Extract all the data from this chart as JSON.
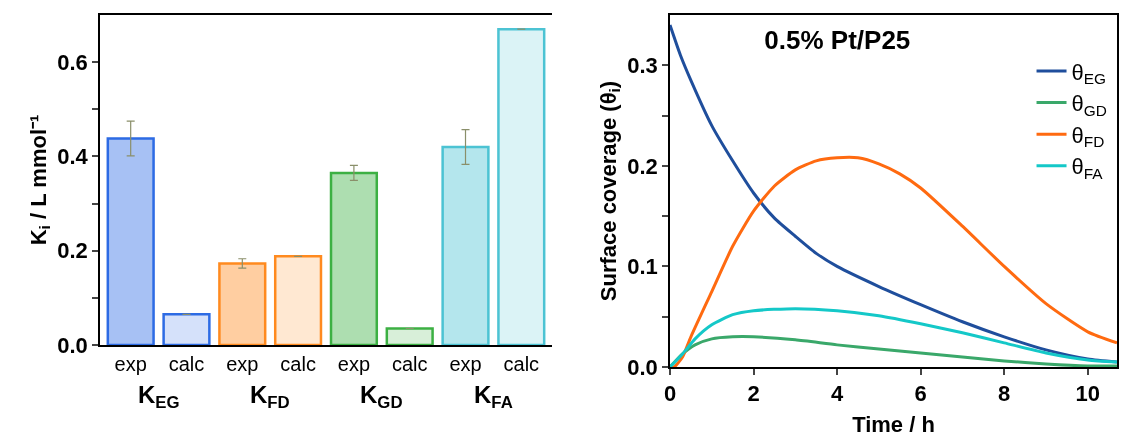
{
  "chart_data": [
    {
      "type": "bar",
      "ylabel": "K$_{i}$ / L mmol⁻¹",
      "categories": [
        "exp",
        "calc",
        "exp",
        "calc",
        "exp",
        "calc",
        "exp",
        "calc"
      ],
      "values": [
        0.438,
        0.065,
        0.173,
        0.188,
        0.365,
        0.035,
        0.42,
        0.67
      ],
      "errors": [
        0.037,
        null,
        0.01,
        null,
        0.016,
        null,
        0.037,
        null
      ],
      "colors": [
        "#2d6be4",
        "#2d6be4",
        "#ff8a1f",
        "#ff8a1f",
        "#3cb043",
        "#3cb043",
        "#4cc3d3",
        "#4cc3d3"
      ],
      "annotations": [
        "K$_{EG}$",
        "K$_{FD}$",
        "K$_{GD}$",
        "K$_{FA}$"
      ],
      "ylim": [
        0,
        0.7
      ],
      "yticks": [
        {
          "value": 0,
          "label": "0.0"
        },
        {
          "value": 0.1,
          "label": null
        },
        0.2,
        {
          "value": 0.3,
          "label": null
        },
        0.4,
        {
          "value": 0.5,
          "label": null
        },
        0.6
      ],
      "grid": false,
      "legend": false
    },
    {
      "type": "line",
      "title": "0.5% Pt/P25",
      "xlabel": "Time / h",
      "ylabel": "Surface coverage (θ$_{i}$)",
      "series": [
        {
          "name": "θ$_{EG}$",
          "color": "#1f4e9c",
          "x": [
            0,
            0.25,
            0.5,
            1,
            1.5,
            2,
            2.5,
            3,
            3.5,
            4,
            5,
            6,
            7,
            8,
            9,
            10,
            10.7
          ],
          "values": [
            0.34,
            0.31,
            0.285,
            0.24,
            0.205,
            0.173,
            0.148,
            0.13,
            0.113,
            0.1,
            0.08,
            0.062,
            0.045,
            0.03,
            0.017,
            0.008,
            0.005
          ]
        },
        {
          "name": "θ$_{GD}$",
          "color": "#3aa86a",
          "x": [
            0,
            0.3,
            0.6,
            1,
            1.5,
            2,
            3,
            4,
            5,
            6,
            7,
            8,
            9,
            10,
            10.7
          ],
          "values": [
            0,
            0.013,
            0.022,
            0.028,
            0.03,
            0.03,
            0.027,
            0.022,
            0.018,
            0.014,
            0.01,
            0.006,
            0.003,
            0.001,
            0.001
          ]
        },
        {
          "name": "θ$_{FD}$",
          "color": "#ff6a10",
          "x": [
            0,
            0.1,
            0.3,
            0.5,
            1,
            1.5,
            2,
            2.5,
            3,
            3.5,
            4,
            4.5,
            5,
            5.5,
            6,
            7,
            8,
            9,
            10,
            10.7
          ],
          "values": [
            0,
            0,
            0.01,
            0.03,
            0.075,
            0.12,
            0.155,
            0.18,
            0.196,
            0.205,
            0.208,
            0.208,
            0.202,
            0.192,
            0.178,
            0.14,
            0.1,
            0.063,
            0.035,
            0.024
          ]
        },
        {
          "name": "θ$_{FA}$",
          "color": "#14c8c8",
          "x": [
            0,
            0.3,
            0.6,
            1,
            1.5,
            2,
            3,
            4,
            5,
            6,
            7,
            8,
            9,
            10,
            10.7
          ],
          "values": [
            0,
            0.013,
            0.028,
            0.042,
            0.052,
            0.056,
            0.058,
            0.056,
            0.051,
            0.043,
            0.034,
            0.024,
            0.014,
            0.007,
            0.005
          ]
        }
      ],
      "xlim": [
        0,
        10.7
      ],
      "xticks": [
        0,
        2,
        4,
        6,
        8,
        10
      ],
      "ylim": [
        0,
        0.35
      ],
      "yticks": [
        {
          "value": 0,
          "label": "0.0"
        },
        {
          "value": 0.05,
          "label": null
        },
        0.1,
        {
          "value": 0.15,
          "label": null
        },
        0.2,
        {
          "value": 0.25,
          "label": null
        },
        0.3
      ],
      "grid": false,
      "legend": "right",
      "marker": "none",
      "line_style": "solid"
    }
  ]
}
